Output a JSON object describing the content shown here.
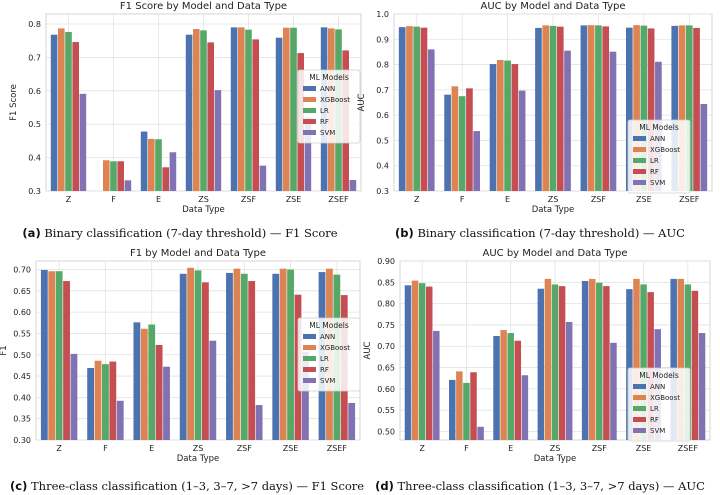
{
  "panels": [
    {
      "caption_tag": "(a)",
      "caption_text": "Binary classification (7-day threshold) — F1 Score",
      "chart_data": {
        "type": "bar",
        "title": "F1 Score by Model and Data Type",
        "xlabel": "Data Type",
        "ylabel": "F1 Score",
        "ylim": [
          0.3,
          0.83
        ],
        "yticks": [
          "0.3",
          "0.4",
          "0.5",
          "0.6",
          "0.7",
          "0.8"
        ],
        "grid": true,
        "legend_title": "ML Models",
        "legend_position": "right",
        "categories": [
          "Z",
          "F",
          "E",
          "ZS",
          "ZSF",
          "ZSE",
          "ZSEF"
        ],
        "series": [
          {
            "name": "ANN",
            "color": "#4c72b0",
            "values": [
              0.768,
              null,
              0.478,
              0.768,
              0.79,
              0.759,
              0.79
            ]
          },
          {
            "name": "XGBoost",
            "color": "#dd8452",
            "values": [
              0.787,
              0.392,
              0.456,
              0.785,
              0.79,
              0.789,
              0.787
            ]
          },
          {
            "name": "LR",
            "color": "#55a868",
            "values": [
              0.776,
              0.389,
              0.455,
              0.781,
              0.783,
              0.789,
              0.784
            ]
          },
          {
            "name": "RF",
            "color": "#c44e52",
            "values": [
              0.746,
              0.389,
              0.371,
              0.745,
              0.754,
              0.713,
              0.721
            ]
          },
          {
            "name": "SVM",
            "color": "#8172b3",
            "values": [
              0.591,
              0.332,
              0.416,
              0.602,
              0.376,
              0.52,
              0.333
            ]
          }
        ]
      }
    },
    {
      "caption_tag": "(b)",
      "caption_text": "Binary classification (7-day threshold) — AUC",
      "chart_data": {
        "type": "bar",
        "title": "AUC by Model and Data Type",
        "xlabel": "Data Type",
        "ylabel": "AUC",
        "ylim": [
          0.3,
          1.0
        ],
        "yticks": [
          "0.3",
          "0.4",
          "0.5",
          "0.6",
          "0.7",
          "0.8",
          "0.9",
          "1.0"
        ],
        "grid": true,
        "legend_title": "ML Models",
        "legend_position": "lower right",
        "categories": [
          "Z",
          "F",
          "E",
          "ZS",
          "ZSF",
          "ZSE",
          "ZSEF"
        ],
        "series": [
          {
            "name": "ANN",
            "color": "#4c72b0",
            "values": [
              0.948,
              0.681,
              0.802,
              0.945,
              0.955,
              0.946,
              0.953
            ]
          },
          {
            "name": "XGBoost",
            "color": "#dd8452",
            "values": [
              0.952,
              0.714,
              0.818,
              0.955,
              0.956,
              0.956,
              0.955
            ]
          },
          {
            "name": "LR",
            "color": "#55a868",
            "values": [
              0.95,
              0.675,
              0.816,
              0.953,
              0.955,
              0.954,
              0.955
            ]
          },
          {
            "name": "RF",
            "color": "#c44e52",
            "values": [
              0.946,
              0.706,
              0.802,
              0.95,
              0.951,
              0.943,
              0.945
            ]
          },
          {
            "name": "SVM",
            "color": "#8172b3",
            "values": [
              0.86,
              0.537,
              0.697,
              0.855,
              0.851,
              0.811,
              0.644
            ]
          }
        ]
      }
    },
    {
      "caption_tag": "(c)",
      "caption_text": "Three-class classification (1–3, 3–7, >7 days) — F1 Score",
      "chart_data": {
        "type": "bar",
        "title": "F1 by Model and Data Type",
        "xlabel": "Data Type",
        "ylabel": "F1",
        "ylim": [
          0.3,
          0.72
        ],
        "yticks": [
          "0.30",
          "0.35",
          "0.40",
          "0.45",
          "0.50",
          "0.55",
          "0.60",
          "0.65",
          "0.70"
        ],
        "grid": true,
        "legend_title": "ML Models",
        "legend_position": "right",
        "categories": [
          "Z",
          "F",
          "E",
          "ZS",
          "ZSF",
          "ZSE",
          "ZSEF"
        ],
        "series": [
          {
            "name": "ANN",
            "color": "#4c72b0",
            "values": [
              0.699,
              0.469,
              0.576,
              0.69,
              0.692,
              0.69,
              0.694
            ]
          },
          {
            "name": "XGBoost",
            "color": "#dd8452",
            "values": [
              0.696,
              0.486,
              0.561,
              0.704,
              0.702,
              0.702,
              0.702
            ]
          },
          {
            "name": "LR",
            "color": "#55a868",
            "values": [
              0.696,
              0.478,
              0.571,
              0.698,
              0.69,
              0.7,
              0.688
            ]
          },
          {
            "name": "RF",
            "color": "#c44e52",
            "values": [
              0.673,
              0.484,
              0.523,
              0.67,
              0.673,
              0.641,
              0.64
            ]
          },
          {
            "name": "SVM",
            "color": "#8172b3",
            "values": [
              0.502,
              0.392,
              0.472,
              0.533,
              0.382,
              0.507,
              0.387
            ]
          }
        ]
      }
    },
    {
      "caption_tag": "(d)",
      "caption_text": "Three-class classification (1–3, 3–7, >7 days) — AUC",
      "chart_data": {
        "type": "bar",
        "title": "AUC by Model and Data Type",
        "xlabel": "Data Type",
        "ylabel": "AUC",
        "ylim": [
          0.48,
          0.9
        ],
        "yticks": [
          "0.50",
          "0.55",
          "0.60",
          "0.65",
          "0.70",
          "0.75",
          "0.80",
          "0.85",
          "0.90"
        ],
        "grid": true,
        "legend_title": "ML Models",
        "legend_position": "lower right",
        "categories": [
          "Z",
          "F",
          "E",
          "ZS",
          "ZSF",
          "ZSE",
          "ZSEF"
        ],
        "series": [
          {
            "name": "ANN",
            "color": "#4c72b0",
            "values": [
              0.843,
              0.621,
              0.724,
              0.835,
              0.853,
              0.834,
              0.858
            ]
          },
          {
            "name": "XGBoost",
            "color": "#dd8452",
            "values": [
              0.854,
              0.641,
              0.738,
              0.858,
              0.858,
              0.858,
              0.858
            ]
          },
          {
            "name": "LR",
            "color": "#55a868",
            "values": [
              0.848,
              0.614,
              0.731,
              0.845,
              0.849,
              0.845,
              0.845
            ]
          },
          {
            "name": "RF",
            "color": "#c44e52",
            "values": [
              0.84,
              0.639,
              0.713,
              0.841,
              0.841,
              0.827,
              0.83
            ]
          },
          {
            "name": "SVM",
            "color": "#8172b3",
            "values": [
              0.736,
              0.511,
              0.632,
              0.757,
              0.708,
              0.74,
              0.731
            ]
          }
        ]
      }
    }
  ]
}
